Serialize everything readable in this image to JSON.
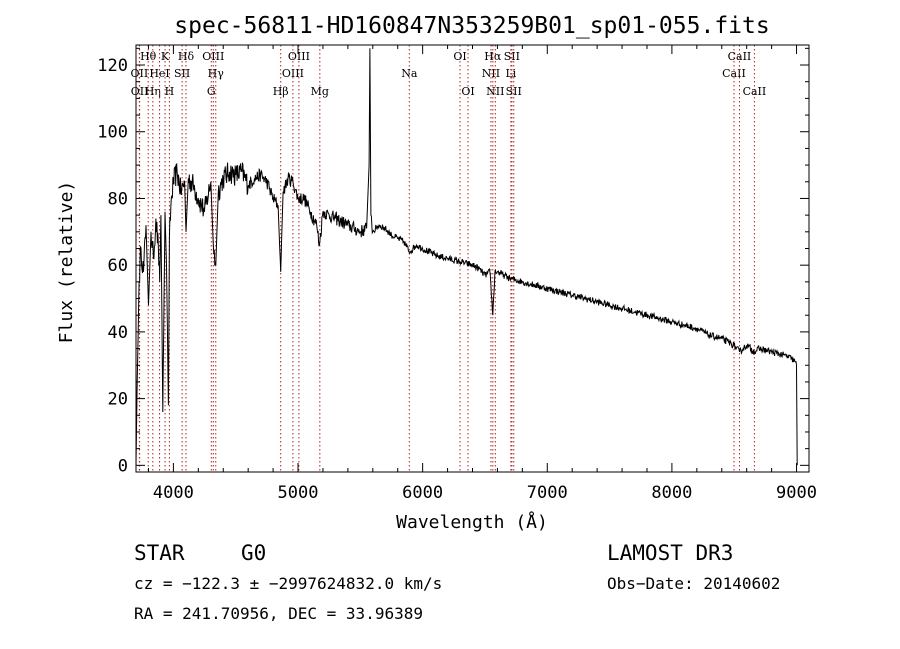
{
  "chart_data": {
    "type": "line",
    "title": "spec-56811-HD160847N353259B01_sp01-055.fits",
    "xlabel": "Wavelength (Å)",
    "ylabel": "Flux (relative)",
    "xlim": [
      3700,
      9100
    ],
    "ylim": [
      -2,
      126
    ],
    "xticks": [
      4000,
      5000,
      6000,
      7000,
      8000,
      9000
    ],
    "yticks": [
      0,
      20,
      40,
      60,
      80,
      100,
      120
    ],
    "series": [
      {
        "name": "spectrum",
        "x": [
          3700,
          3710,
          3725,
          3740,
          3760,
          3780,
          3800,
          3820,
          3840,
          3860,
          3880,
          3890,
          3900,
          3915,
          3933,
          3945,
          3960,
          3968,
          3980,
          4000,
          4030,
          4060,
          4090,
          4101,
          4120,
          4160,
          4200,
          4250,
          4300,
          4320,
          4340,
          4360,
          4400,
          4450,
          4500,
          4550,
          4600,
          4650,
          4700,
          4750,
          4800,
          4840,
          4861,
          4880,
          4920,
          4960,
          5000,
          5050,
          5100,
          5150,
          5172,
          5200,
          5250,
          5300,
          5350,
          5400,
          5450,
          5500,
          5550,
          5570,
          5577,
          5585,
          5600,
          5650,
          5700,
          5750,
          5800,
          5850,
          5893,
          5950,
          6000,
          6100,
          6200,
          6300,
          6400,
          6450,
          6500,
          6540,
          6563,
          6580,
          6600,
          6650,
          6700,
          6800,
          6900,
          7000,
          7100,
          7200,
          7300,
          7400,
          7500,
          7600,
          7700,
          7800,
          7900,
          8000,
          8100,
          8200,
          8300,
          8400,
          8498,
          8542,
          8600,
          8662,
          8700,
          8800,
          8900,
          8960,
          8990,
          9000,
          9005
        ],
        "y": [
          0,
          25,
          55,
          65,
          58,
          72,
          48,
          70,
          62,
          74,
          65,
          55,
          75,
          16,
          76,
          60,
          18,
          68,
          78,
          85,
          88,
          82,
          85,
          70,
          86,
          84,
          80,
          76,
          85,
          66,
          60,
          82,
          86,
          88,
          87,
          88,
          84,
          86,
          87,
          85,
          80,
          78,
          58,
          82,
          86,
          85,
          80,
          80,
          76,
          72,
          66,
          76,
          75,
          74,
          73,
          72,
          71,
          70,
          71,
          90,
          125,
          75,
          70,
          72,
          71,
          69,
          68,
          67,
          64,
          66,
          65,
          63,
          62,
          61,
          60,
          59,
          57,
          58,
          45,
          58,
          58,
          57,
          56,
          55,
          54,
          53,
          52,
          51,
          50,
          49,
          48,
          47,
          46,
          45,
          44,
          43,
          42,
          41,
          39,
          38,
          36,
          34,
          36,
          34,
          35,
          34,
          33,
          32,
          31,
          30,
          0
        ]
      }
    ],
    "lines": [
      {
        "label": "OII",
        "x": 3727,
        "row": 2
      },
      {
        "label": "OII",
        "x": 3729,
        "row": 3
      },
      {
        "label": "Hθ",
        "x": 3798,
        "row": 1
      },
      {
        "label": "Hη",
        "x": 3835,
        "row": 3
      },
      {
        "label": "HeI",
        "x": 3889,
        "row": 2
      },
      {
        "label": "K",
        "x": 3933,
        "row": 1
      },
      {
        "label": "H",
        "x": 3968,
        "row": 3
      },
      {
        "label": "SII",
        "x": 4070,
        "row": 2
      },
      {
        "label": "Hδ",
        "x": 4101,
        "row": 1
      },
      {
        "label": "G",
        "x": 4304,
        "row": 3
      },
      {
        "label": "OIII",
        "x": 4320,
        "row": 1
      },
      {
        "label": "Hγ",
        "x": 4340,
        "row": 2
      },
      {
        "label": "Hβ",
        "x": 4861,
        "row": 3
      },
      {
        "label": "OIII",
        "x": 4959,
        "row": 2
      },
      {
        "label": "OIII",
        "x": 5007,
        "row": 1
      },
      {
        "label": "Mg",
        "x": 5175,
        "row": 3
      },
      {
        "label": "Na",
        "x": 5893,
        "row": 2
      },
      {
        "label": "OI",
        "x": 6300,
        "row": 1
      },
      {
        "label": "OI",
        "x": 6364,
        "row": 3
      },
      {
        "label": "NII",
        "x": 6548,
        "row": 2
      },
      {
        "label": "Hα",
        "x": 6563,
        "row": 1
      },
      {
        "label": "NII",
        "x": 6583,
        "row": 3
      },
      {
        "label": "Li",
        "x": 6708,
        "row": 2
      },
      {
        "label": "SII",
        "x": 6716,
        "row": 1
      },
      {
        "label": "SII",
        "x": 6731,
        "row": 3
      },
      {
        "label": "CaII",
        "x": 8498,
        "row": 2
      },
      {
        "label": "CaII",
        "x": 8542,
        "row": 1
      },
      {
        "label": "CaII",
        "x": 8662,
        "row": 3
      }
    ]
  },
  "info": {
    "class": "STAR",
    "subclass": "G0",
    "survey": "LAMOST DR3",
    "cz": "cz = −122.3 ± −2997624832.0 km/s",
    "obsdate": "Obs−Date: 20140602",
    "radec": "RA = 241.70956, DEC =  33.96389"
  }
}
